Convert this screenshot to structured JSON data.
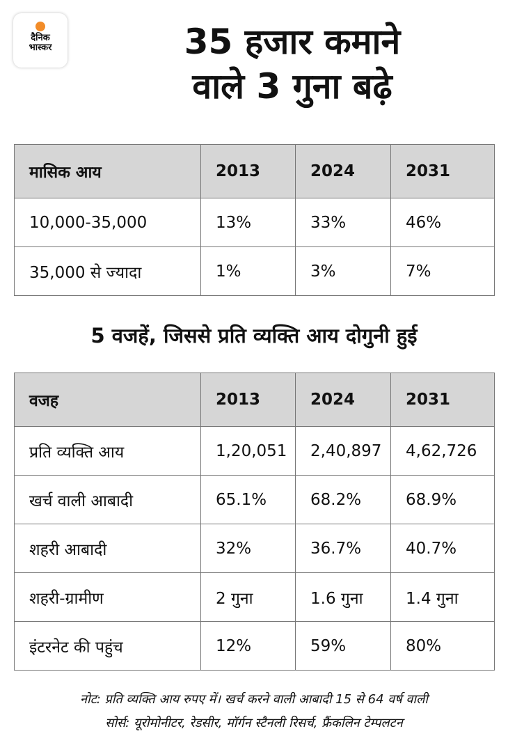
{
  "logo": {
    "line1": "दैनिक",
    "line2": "भास्कर"
  },
  "title": {
    "line1": "35 हजार कमाने",
    "line2": "वाले 3 गुना बढ़े"
  },
  "table1": {
    "headers": [
      "मासिक आय",
      "2013",
      "2024",
      "2031"
    ],
    "rows": [
      [
        "10,000-35,000",
        "13%",
        "33%",
        "46%"
      ],
      [
        "35,000 से ज्यादा",
        "1%",
        "3%",
        "7%"
      ]
    ]
  },
  "subtitle": "5 वजहें, जिससे प्रति व्यक्ति आय दोगुनी हुई",
  "table2": {
    "headers": [
      "वजह",
      "2013",
      "2024",
      "2031"
    ],
    "rows": [
      [
        "प्रति व्यक्ति आय",
        "1,20,051",
        "2,40,897",
        "4,62,726"
      ],
      [
        "खर्च वाली आबादी",
        "65.1%",
        "68.2%",
        "68.9%"
      ],
      [
        "शहरी आबादी",
        "32%",
        "36.7%",
        "40.7%"
      ],
      [
        "शहरी-ग्रामीण",
        "2 गुना",
        "1.6 गुना",
        "1.4 गुना"
      ],
      [
        "इंटरनेट की पहुंच",
        "12%",
        "59%",
        "80%"
      ]
    ]
  },
  "note": "नोट: प्रति व्यक्ति आय रुपए में। खर्च करने वाली आबादी 15 से 64 वर्ष वाली",
  "source": "सोर्स: यूरोमोनीटर, रेडसीर, मॉर्गन स्टैनली रिसर्च, फ्रैंकलिन टेम्पलटन",
  "colors": {
    "header_bg": "#d6d6d6",
    "logo_dot": "#f28c28"
  }
}
